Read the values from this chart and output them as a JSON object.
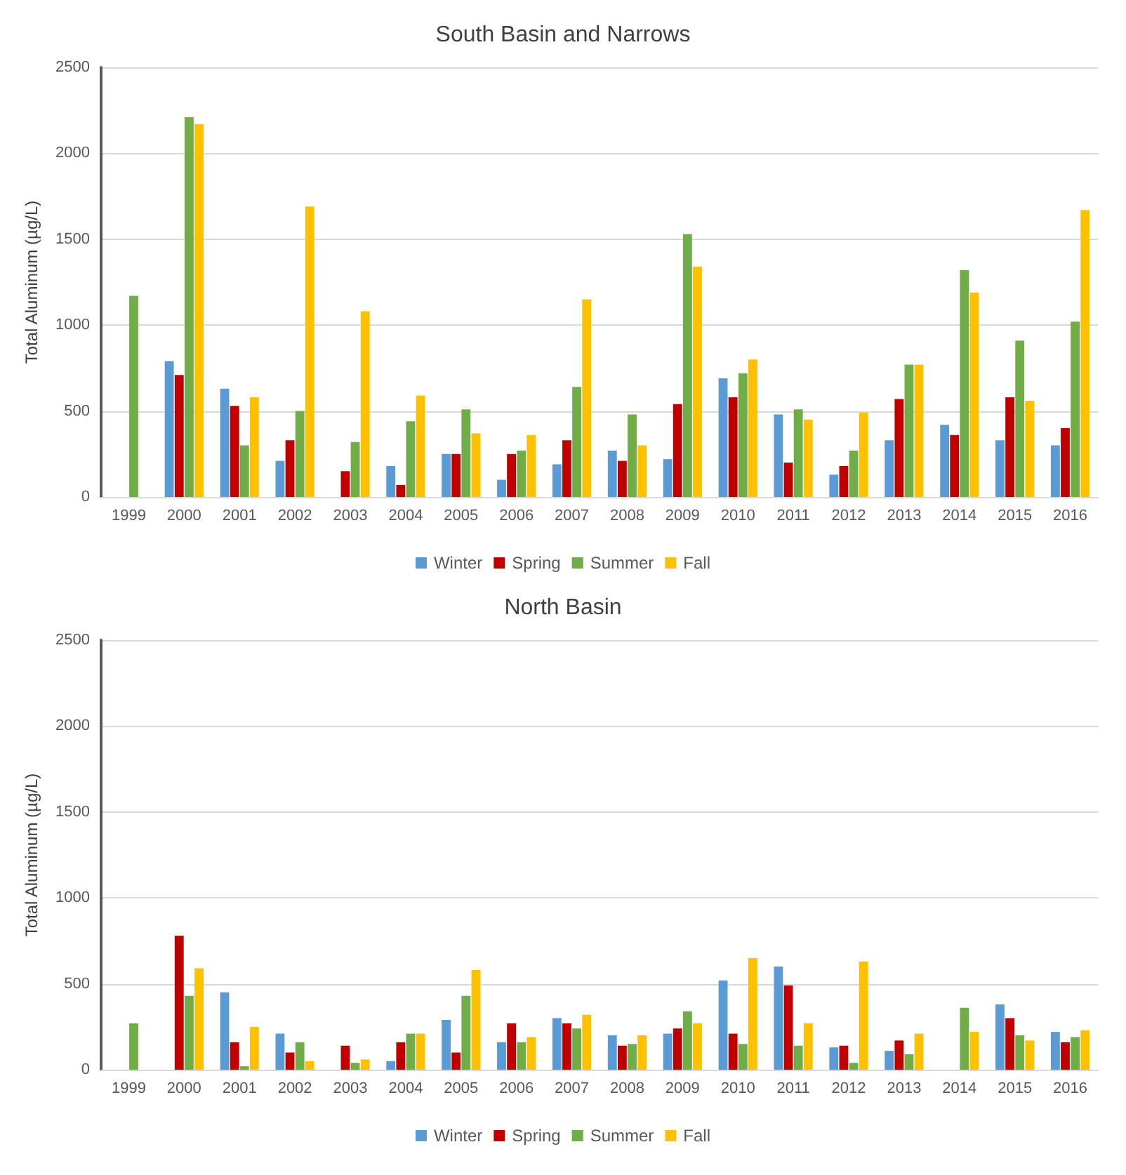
{
  "chart_data": [
    {
      "type": "bar",
      "title": "South Basin and Narrows",
      "ylabel": "Total Aluminum (µg/L)",
      "categories": [
        "1999",
        "2000",
        "2001",
        "2002",
        "2003",
        "2004",
        "2005",
        "2006",
        "2007",
        "2008",
        "2009",
        "2010",
        "2011",
        "2012",
        "2013",
        "2014",
        "2015",
        "2016"
      ],
      "series": [
        {
          "name": "Winter",
          "color": "#5b9bd5",
          "values": [
            null,
            790,
            630,
            210,
            null,
            180,
            250,
            100,
            190,
            270,
            220,
            690,
            480,
            130,
            330,
            420,
            330,
            300
          ]
        },
        {
          "name": "Spring",
          "color": "#c00000",
          "values": [
            null,
            710,
            530,
            330,
            150,
            70,
            250,
            250,
            330,
            210,
            540,
            580,
            200,
            180,
            570,
            360,
            580,
            400
          ]
        },
        {
          "name": "Summer",
          "color": "#70ad47",
          "values": [
            1170,
            2210,
            300,
            500,
            320,
            440,
            510,
            270,
            640,
            480,
            1530,
            720,
            510,
            270,
            770,
            1320,
            910,
            1020
          ]
        },
        {
          "name": "Fall",
          "color": "#ffc000",
          "values": [
            null,
            2170,
            580,
            1690,
            1080,
            590,
            370,
            360,
            1150,
            300,
            1340,
            800,
            450,
            490,
            770,
            1190,
            560,
            1670
          ]
        }
      ],
      "ylim": [
        0,
        2500
      ],
      "yticks": [
        0,
        500,
        1000,
        1500,
        2000,
        2500
      ],
      "grid": "y",
      "legend": "bottom"
    },
    {
      "type": "bar",
      "title": "North Basin",
      "ylabel": "Total Aluminum (µg/L)",
      "categories": [
        "1999",
        "2000",
        "2001",
        "2002",
        "2003",
        "2004",
        "2005",
        "2006",
        "2007",
        "2008",
        "2009",
        "2010",
        "2011",
        "2012",
        "2013",
        "2014",
        "2015",
        "2016"
      ],
      "series": [
        {
          "name": "Winter",
          "color": "#5b9bd5",
          "values": [
            null,
            null,
            450,
            210,
            null,
            50,
            290,
            160,
            300,
            200,
            210,
            520,
            600,
            130,
            110,
            null,
            380,
            220
          ]
        },
        {
          "name": "Spring",
          "color": "#c00000",
          "values": [
            null,
            780,
            160,
            100,
            140,
            160,
            100,
            270,
            270,
            140,
            240,
            210,
            490,
            140,
            170,
            null,
            300,
            160
          ]
        },
        {
          "name": "Summer",
          "color": "#70ad47",
          "values": [
            270,
            430,
            20,
            160,
            40,
            210,
            430,
            160,
            240,
            150,
            340,
            150,
            140,
            40,
            90,
            360,
            200,
            190
          ]
        },
        {
          "name": "Fall",
          "color": "#ffc000",
          "values": [
            null,
            590,
            250,
            50,
            60,
            210,
            580,
            190,
            320,
            200,
            270,
            650,
            270,
            630,
            210,
            220,
            170,
            230
          ]
        }
      ],
      "ylim": [
        0,
        2500
      ],
      "yticks": [
        0,
        500,
        1000,
        1500,
        2000,
        2500
      ],
      "grid": "y",
      "legend": "bottom"
    }
  ]
}
